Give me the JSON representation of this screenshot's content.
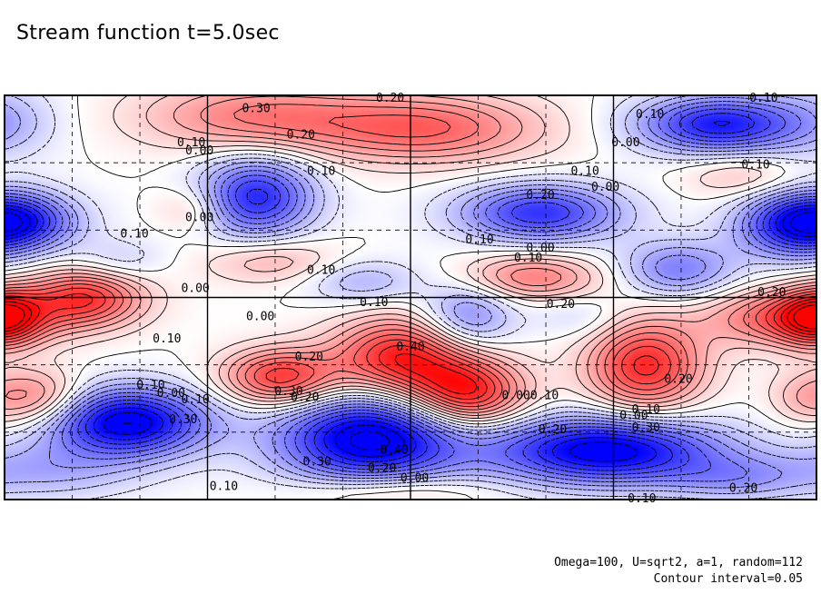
{
  "figure": {
    "title": "Stream function t=5.0sec",
    "params_line": "Omega=100, U=sqrt2, a=1, random=112",
    "contour_line": "Contour interval=0.05"
  },
  "chart_data": {
    "type": "heatmap",
    "title": "Stream function t=5.0sec",
    "contour_interval": 0.05,
    "colors": {
      "positive": "#ff0000",
      "negative": "#0000ff",
      "zero": "#ffffff",
      "line": "#000000"
    },
    "grid": true,
    "blobs": [
      {
        "x": 0.0,
        "y": 0.06,
        "a": -0.1,
        "sx": 0.05,
        "sy": 0.07
      },
      {
        "x": 0.31,
        "y": 0.05,
        "a": 0.25,
        "sx": 0.1,
        "sy": 0.06
      },
      {
        "x": 0.52,
        "y": 0.08,
        "a": 0.3,
        "sx": 0.1,
        "sy": 0.06
      },
      {
        "x": 0.88,
        "y": 0.07,
        "a": -0.45,
        "sx": 0.07,
        "sy": 0.05
      },
      {
        "x": 0.91,
        "y": 0.2,
        "a": 0.12,
        "sx": 0.05,
        "sy": 0.04
      },
      {
        "x": 0.31,
        "y": 0.25,
        "a": -0.42,
        "sx": 0.05,
        "sy": 0.07
      },
      {
        "x": 0.23,
        "y": 0.28,
        "a": 0.12,
        "sx": 0.03,
        "sy": 0.04
      },
      {
        "x": 0.66,
        "y": 0.29,
        "a": -0.4,
        "sx": 0.07,
        "sy": 0.05
      },
      {
        "x": 0.02,
        "y": 0.31,
        "a": -0.35,
        "sx": 0.05,
        "sy": 0.05
      },
      {
        "x": 0.97,
        "y": 0.32,
        "a": -0.35,
        "sx": 0.05,
        "sy": 0.06
      },
      {
        "x": 0.14,
        "y": 0.41,
        "a": -0.1,
        "sx": 0.04,
        "sy": 0.04
      },
      {
        "x": 0.33,
        "y": 0.41,
        "a": 0.15,
        "sx": 0.06,
        "sy": 0.04
      },
      {
        "x": 0.65,
        "y": 0.45,
        "a": 0.25,
        "sx": 0.06,
        "sy": 0.04
      },
      {
        "x": 0.83,
        "y": 0.43,
        "a": -0.25,
        "sx": 0.05,
        "sy": 0.05
      },
      {
        "x": 0.1,
        "y": 0.5,
        "a": 0.38,
        "sx": 0.05,
        "sy": 0.05
      },
      {
        "x": 0.44,
        "y": 0.46,
        "a": -0.15,
        "sx": 0.05,
        "sy": 0.04
      },
      {
        "x": 0.57,
        "y": 0.55,
        "a": -0.25,
        "sx": 0.04,
        "sy": 0.06
      },
      {
        "x": 0.97,
        "y": 0.55,
        "a": 0.35,
        "sx": 0.07,
        "sy": 0.05
      },
      {
        "x": 0.0,
        "y": 0.55,
        "a": 0.3,
        "sx": 0.03,
        "sy": 0.05
      },
      {
        "x": 0.49,
        "y": 0.65,
        "a": 0.45,
        "sx": 0.06,
        "sy": 0.07
      },
      {
        "x": 0.57,
        "y": 0.74,
        "a": 0.45,
        "sx": 0.05,
        "sy": 0.06
      },
      {
        "x": 0.34,
        "y": 0.7,
        "a": 0.4,
        "sx": 0.05,
        "sy": 0.05
      },
      {
        "x": 0.79,
        "y": 0.67,
        "a": 0.42,
        "sx": 0.05,
        "sy": 0.08
      },
      {
        "x": 0.04,
        "y": 0.75,
        "a": 0.25,
        "sx": 0.04,
        "sy": 0.05
      },
      {
        "x": 0.98,
        "y": 0.75,
        "a": 0.1,
        "sx": 0.03,
        "sy": 0.05
      },
      {
        "x": 0.15,
        "y": 0.81,
        "a": -0.55,
        "sx": 0.07,
        "sy": 0.06
      },
      {
        "x": 0.45,
        "y": 0.85,
        "a": -0.58,
        "sx": 0.08,
        "sy": 0.08
      },
      {
        "x": 0.74,
        "y": 0.88,
        "a": -0.55,
        "sx": 0.1,
        "sy": 0.06
      },
      {
        "x": 0.47,
        "y": 0.98,
        "a": 0.15,
        "sx": 0.08,
        "sy": 0.03
      },
      {
        "x": 0.9,
        "y": 0.95,
        "a": -0.15,
        "sx": 0.06,
        "sy": 0.04
      },
      {
        "x": 0.05,
        "y": 0.93,
        "a": -0.15,
        "sx": 0.08,
        "sy": 0.05
      },
      {
        "x": 0.71,
        "y": 0.55,
        "a": -0.08,
        "sx": 0.04,
        "sy": 0.04
      }
    ],
    "contour_labels": [
      {
        "text": "0.20",
        "x": 0.475,
        "y": 0.005
      },
      {
        "text": "0.30",
        "x": 0.31,
        "y": 0.03
      },
      {
        "text": "0.20",
        "x": 0.365,
        "y": 0.095
      },
      {
        "text": "0.10",
        "x": 0.23,
        "y": 0.115
      },
      {
        "text": "0.00",
        "x": 0.24,
        "y": 0.135
      },
      {
        "text": "0.10",
        "x": 0.935,
        "y": 0.005
      },
      {
        "text": "0.10",
        "x": 0.795,
        "y": 0.045
      },
      {
        "text": "0.00",
        "x": 0.765,
        "y": 0.115
      },
      {
        "text": "0.10",
        "x": 0.39,
        "y": 0.185
      },
      {
        "text": "0.10",
        "x": 0.715,
        "y": 0.185
      },
      {
        "text": "0.00",
        "x": 0.74,
        "y": 0.225
      },
      {
        "text": "0.10",
        "x": 0.925,
        "y": 0.17
      },
      {
        "text": "0.20",
        "x": 0.66,
        "y": 0.245
      },
      {
        "text": "0.00",
        "x": 0.24,
        "y": 0.3
      },
      {
        "text": "0.10",
        "x": 0.16,
        "y": 0.34
      },
      {
        "text": "0.10",
        "x": 0.585,
        "y": 0.355
      },
      {
        "text": "0.00",
        "x": 0.66,
        "y": 0.375
      },
      {
        "text": "0.10",
        "x": 0.645,
        "y": 0.4
      },
      {
        "text": "0.10",
        "x": 0.39,
        "y": 0.43
      },
      {
        "text": "0.00",
        "x": 0.235,
        "y": 0.475
      },
      {
        "text": "0.20",
        "x": 0.685,
        "y": 0.515
      },
      {
        "text": "0.20",
        "x": 0.945,
        "y": 0.485
      },
      {
        "text": "0.10",
        "x": 0.455,
        "y": 0.51
      },
      {
        "text": "0.00",
        "x": 0.315,
        "y": 0.545
      },
      {
        "text": "0.10",
        "x": 0.2,
        "y": 0.6
      },
      {
        "text": "0.40",
        "x": 0.5,
        "y": 0.62
      },
      {
        "text": "0.20",
        "x": 0.375,
        "y": 0.645
      },
      {
        "text": "0.30",
        "x": 0.35,
        "y": 0.73
      },
      {
        "text": "0.20",
        "x": 0.37,
        "y": 0.745
      },
      {
        "text": "0.10",
        "x": 0.18,
        "y": 0.715
      },
      {
        "text": "0.00",
        "x": 0.205,
        "y": 0.735
      },
      {
        "text": "0.10",
        "x": 0.235,
        "y": 0.75
      },
      {
        "text": "0.30",
        "x": 0.22,
        "y": 0.8
      },
      {
        "text": "0.00",
        "x": 0.63,
        "y": 0.74
      },
      {
        "text": "0.10",
        "x": 0.665,
        "y": 0.74
      },
      {
        "text": "0.20",
        "x": 0.83,
        "y": 0.7
      },
      {
        "text": "0.10",
        "x": 0.79,
        "y": 0.775
      },
      {
        "text": "0.00",
        "x": 0.775,
        "y": 0.79
      },
      {
        "text": "0.20",
        "x": 0.675,
        "y": 0.825
      },
      {
        "text": "0.30",
        "x": 0.79,
        "y": 0.82
      },
      {
        "text": "0.40",
        "x": 0.48,
        "y": 0.875
      },
      {
        "text": "0.30",
        "x": 0.385,
        "y": 0.905
      },
      {
        "text": "0.20",
        "x": 0.465,
        "y": 0.92
      },
      {
        "text": "0.00",
        "x": 0.505,
        "y": 0.945
      },
      {
        "text": "0.10",
        "x": 0.27,
        "y": 0.965
      },
      {
        "text": "0.10",
        "x": 0.785,
        "y": 0.995
      },
      {
        "text": "0.20",
        "x": 0.91,
        "y": 0.97
      }
    ]
  }
}
